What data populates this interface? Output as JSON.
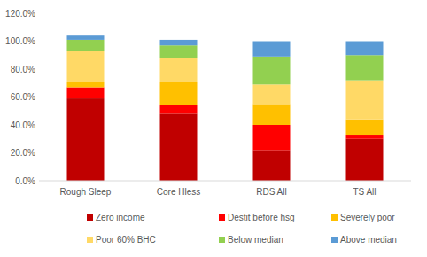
{
  "chart_data": {
    "type": "bar",
    "stacked": true,
    "grid": false,
    "legend": "bottom",
    "categories": [
      "Rough Sleep",
      "Core Hless",
      "RDS All",
      "TS All"
    ],
    "series": [
      {
        "name": "Zero income",
        "color": "#c00000",
        "values": [
          59,
          48,
          22,
          30
        ]
      },
      {
        "name": "Destit before hsg",
        "color": "#ff0000",
        "values": [
          8,
          6,
          18,
          3
        ]
      },
      {
        "name": "Severely poor",
        "color": "#ffc000",
        "values": [
          4,
          17,
          15,
          11
        ]
      },
      {
        "name": "Poor 60% BHC",
        "color": "#ffd966",
        "values": [
          22,
          17,
          14,
          28
        ]
      },
      {
        "name": "Below median",
        "color": "#92d050",
        "values": [
          8,
          9,
          20,
          18
        ]
      },
      {
        "name": "Above median",
        "color": "#5b9bd5",
        "values": [
          3,
          4,
          11,
          10
        ]
      }
    ],
    "ylim": [
      0,
      120
    ],
    "yticks": [
      {
        "value": 0,
        "label": "0.0%"
      },
      {
        "value": 20,
        "label": "20.0%"
      },
      {
        "value": 40,
        "label": "40.0%"
      },
      {
        "value": 60,
        "label": "60.0%"
      },
      {
        "value": 80,
        "label": "80.0%"
      },
      {
        "value": 100,
        "label": "100.0%"
      },
      {
        "value": 120,
        "label": "120.0%"
      }
    ]
  }
}
